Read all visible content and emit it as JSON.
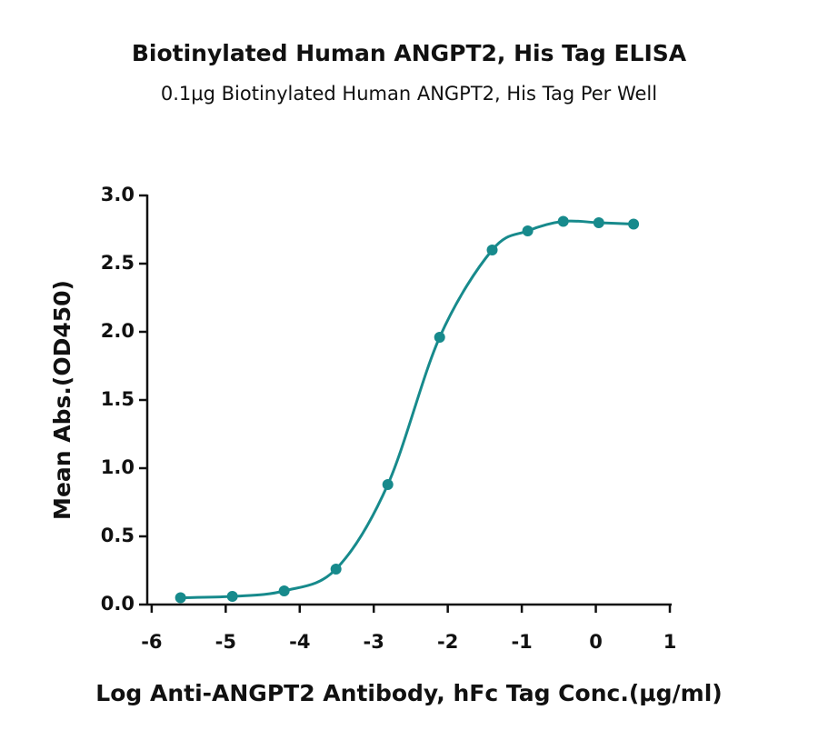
{
  "chart_data": {
    "type": "scatter",
    "title": "Biotinylated Human ANGPT2, His Tag ELISA",
    "subtitle": "0.1μg Biotinylated Human ANGPT2, His Tag Per Well",
    "x_label": "Log Anti-ANGPT2 Antibody, hFc Tag Conc.(μg/ml)",
    "y_label": "Mean Abs.(OD450)",
    "x": [
      -5.61,
      -4.91,
      -4.21,
      -3.51,
      -2.81,
      -2.11,
      -1.4,
      -0.92,
      -0.44,
      0.04,
      0.51
    ],
    "values": [
      0.05,
      0.06,
      0.1,
      0.26,
      0.88,
      1.96,
      2.6,
      2.74,
      2.81,
      2.8,
      2.79
    ],
    "color": "#178a8c",
    "curve": true,
    "xlim": [
      -6.06,
      1
    ],
    "ylim": [
      0,
      3
    ],
    "xticks": [
      -6,
      -5,
      -4,
      -3,
      -2,
      -1,
      0,
      1
    ],
    "yticks": [
      {
        "value": 0,
        "label": "0.0"
      },
      {
        "value": 0.5,
        "label": "0.5"
      },
      {
        "value": 1,
        "label": "1.0"
      },
      {
        "value": 1.5,
        "label": "1.5"
      },
      {
        "value": 2,
        "label": "2.0"
      },
      {
        "value": 2.5,
        "label": "2.5"
      },
      {
        "value": 3,
        "label": "3.0"
      }
    ]
  }
}
